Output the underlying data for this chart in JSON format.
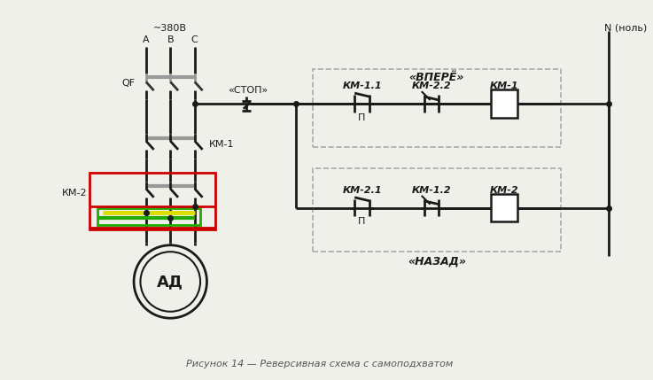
{
  "bg_color": "#f0f0eb",
  "line_color": "#1a1a1a",
  "title": "Рисунок 14 — Реверсивная схема с самоподхватом",
  "label_380": "~380В",
  "label_A": "A",
  "label_B": "B",
  "label_C": "C",
  "label_QF": "QF",
  "label_KM1": "КМ-1",
  "label_KM2": "КМ-2",
  "label_AD": "АД",
  "label_stop": "«СТОП»",
  "label_vpered": "«ВПЕРЁ»",
  "label_nazad": "«НАЗАД»",
  "label_N": "N (ноль)",
  "label_KM11": "КМ-1.1",
  "label_KM22": "КМ-2.2",
  "label_KM1c": "КМ-1",
  "label_KM21": "КМ-2.1",
  "label_KM12": "КМ-1.2",
  "label_KM2c": "КМ-2",
  "red_color": "#cc0000",
  "green_color": "#22aa00",
  "yellow_color": "#dddd00",
  "gray_color": "#999999",
  "dash_color": "#aaaaaa",
  "lw_main": 2.0,
  "lw_color": 3.0
}
